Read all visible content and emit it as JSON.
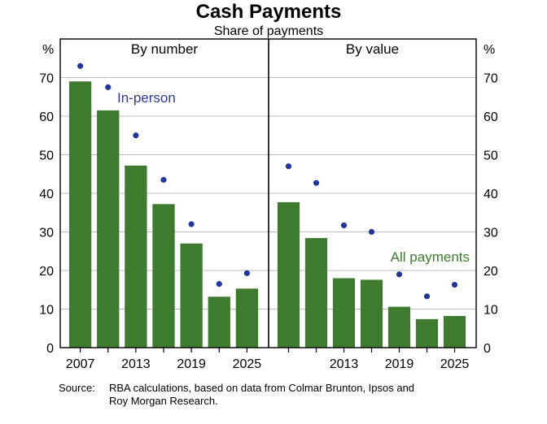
{
  "title": "Cash Payments",
  "subtitle": "Share of payments",
  "y_unit": "%",
  "source_label": "Source:",
  "source_lines": [
    "RBA calculations, based on data from Colmar Brunton, Ipsos and",
    "Roy Morgan Research."
  ],
  "colors": {
    "all_payments_bar": "#3e7b2f",
    "in_person_dot": "#22379a",
    "in_person_label": "#2e3b8c",
    "grid": "#bdbdbd"
  },
  "chart_data": [
    {
      "type": "bar",
      "panel_title": "By number",
      "x": [
        2007,
        2010,
        2013,
        2016,
        2019,
        2022,
        2025
      ],
      "x_tick_labels": [
        "2007",
        "2013",
        "2019",
        "2025"
      ],
      "y_ticks": [
        0,
        10,
        20,
        30,
        40,
        50,
        60,
        70
      ],
      "ylim": [
        0,
        80
      ],
      "series": [
        {
          "name": "All payments",
          "kind": "bar",
          "values": [
            69,
            61.5,
            47.2,
            37.2,
            27,
            13.2,
            15.3
          ]
        },
        {
          "name": "In-person",
          "kind": "dot",
          "values": [
            73,
            67.5,
            55,
            43.5,
            32,
            16.5,
            19.3
          ]
        }
      ],
      "annotation": "In-person",
      "annotation_series": "In-person"
    },
    {
      "type": "bar",
      "panel_title": "By value",
      "x": [
        2007,
        2010,
        2013,
        2016,
        2019,
        2022,
        2025
      ],
      "x_tick_labels": [
        "2013",
        "2019",
        "2025"
      ],
      "y_ticks": [
        0,
        10,
        20,
        30,
        40,
        50,
        60,
        70
      ],
      "ylim": [
        0,
        80
      ],
      "series": [
        {
          "name": "All payments",
          "kind": "bar",
          "values": [
            37.7,
            28.4,
            18,
            17.6,
            10.6,
            7.4,
            8.2
          ]
        },
        {
          "name": "In-person",
          "kind": "dot",
          "values": [
            47,
            42.7,
            31.7,
            30,
            19,
            13.3,
            16.3
          ]
        }
      ],
      "annotation": "All payments",
      "annotation_series": "All payments"
    }
  ]
}
